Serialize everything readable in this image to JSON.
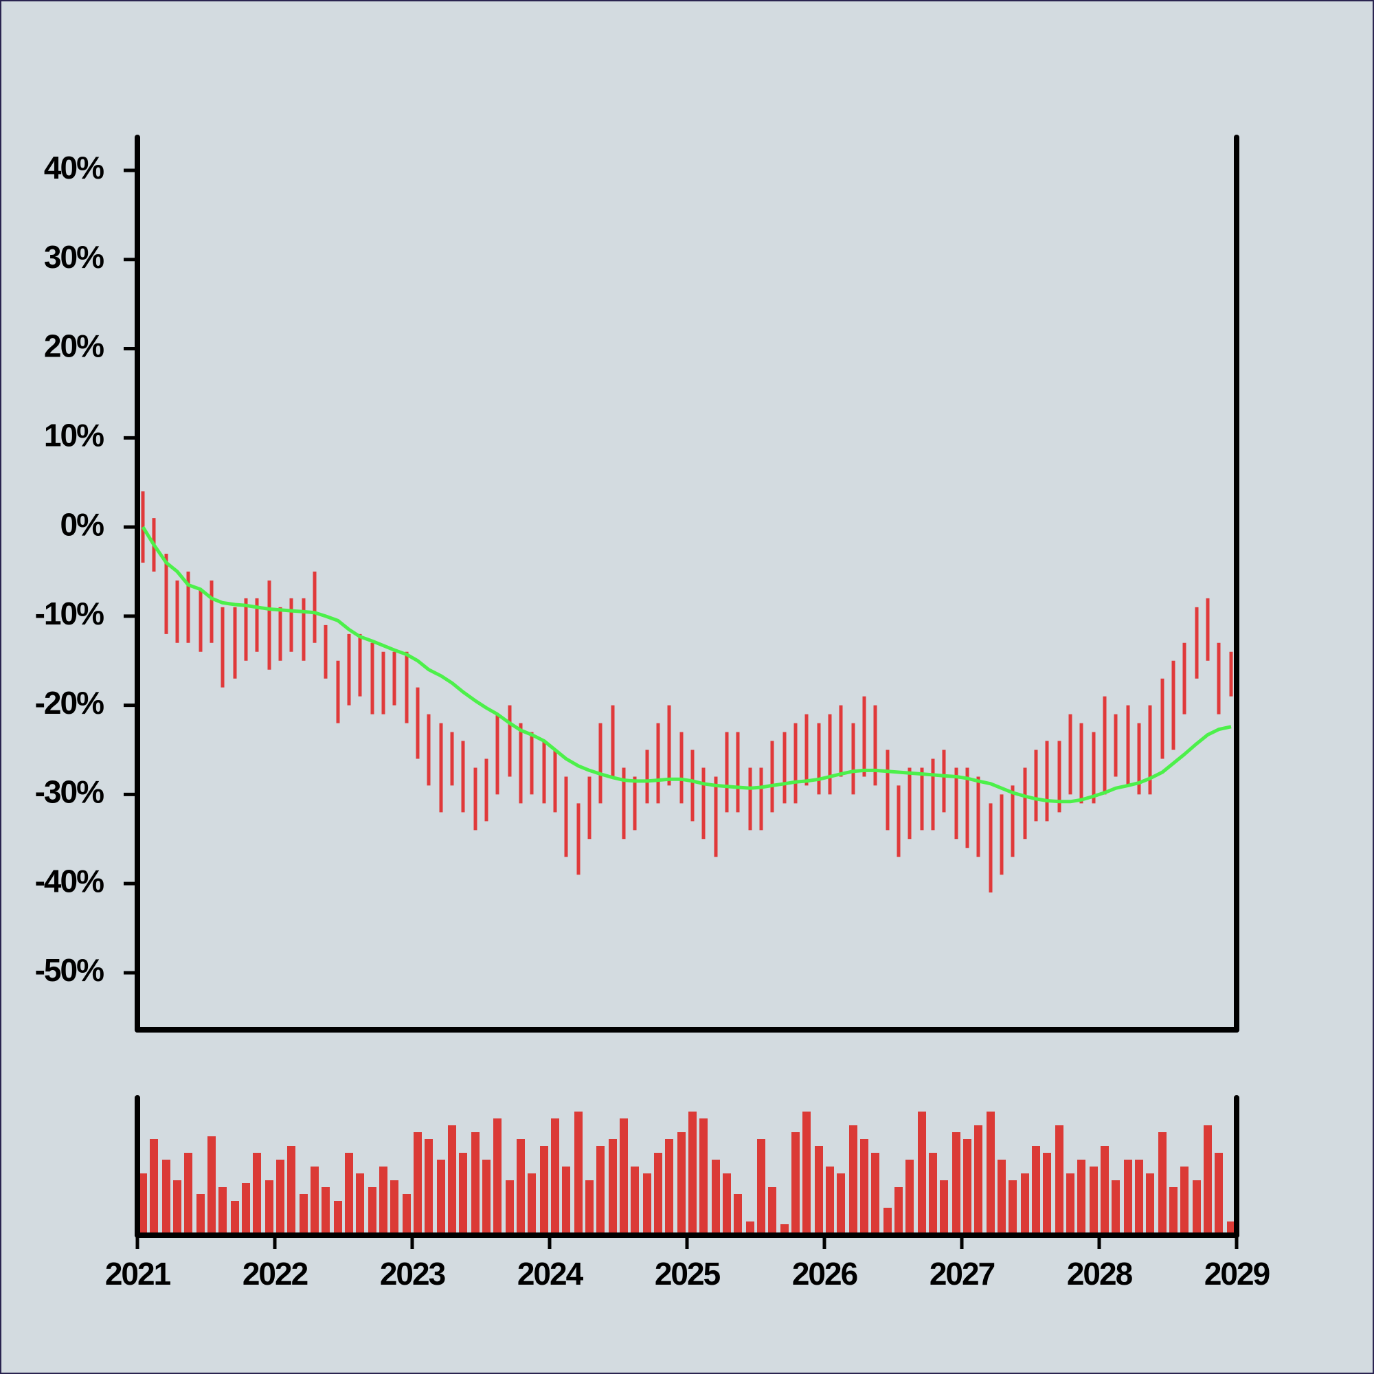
{
  "chart_data": {
    "type": "ohlc",
    "x": [
      2021.04,
      2021.12,
      2021.21,
      2021.29,
      2021.37,
      2021.46,
      2021.54,
      2021.62,
      2021.71,
      2021.79,
      2021.87,
      2021.96,
      2022.04,
      2022.12,
      2022.21,
      2022.29,
      2022.37,
      2022.46,
      2022.54,
      2022.62,
      2022.71,
      2022.79,
      2022.87,
      2022.96,
      2023.04,
      2023.12,
      2023.21,
      2023.29,
      2023.37,
      2023.46,
      2023.54,
      2023.62,
      2023.71,
      2023.79,
      2023.87,
      2023.96,
      2024.04,
      2024.12,
      2024.21,
      2024.29,
      2024.37,
      2024.46,
      2024.54,
      2024.62,
      2024.71,
      2024.79,
      2024.87,
      2024.96,
      2025.04,
      2025.12,
      2025.21,
      2025.29,
      2025.37,
      2025.46,
      2025.54,
      2025.62,
      2025.71,
      2025.79,
      2025.87,
      2025.96,
      2026.04,
      2026.12,
      2026.21,
      2026.29,
      2026.37,
      2026.46,
      2026.54,
      2026.62,
      2026.71,
      2026.79,
      2026.87,
      2026.96,
      2027.04,
      2027.12,
      2027.21,
      2027.29,
      2027.37,
      2027.46,
      2027.54,
      2027.62,
      2027.71,
      2027.79,
      2027.87,
      2027.96,
      2028.04,
      2028.12,
      2028.21,
      2028.29,
      2028.37,
      2028.46,
      2028.54,
      2028.62,
      2028.71,
      2028.79,
      2028.87,
      2028.96
    ],
    "high": [
      4,
      1,
      -3,
      -6,
      -5,
      -7,
      -6,
      -9,
      -9,
      -8,
      -8,
      -6,
      -9,
      -8,
      -8,
      -5,
      -11,
      -15,
      -12,
      -12,
      -13,
      -14,
      -14,
      -14,
      -18,
      -21,
      -22,
      -23,
      -24,
      -27,
      -26,
      -21,
      -20,
      -22,
      -23,
      -24,
      -25,
      -28,
      -31,
      -28,
      -22,
      -20,
      -27,
      -28,
      -25,
      -22,
      -20,
      -23,
      -25,
      -27,
      -28,
      -23,
      -23,
      -27,
      -27,
      -24,
      -23,
      -22,
      -21,
      -22,
      -21,
      -20,
      -22,
      -19,
      -20,
      -25,
      -29,
      -27,
      -27,
      -26,
      -25,
      -27,
      -27,
      -28,
      -31,
      -30,
      -29,
      -27,
      -25,
      -24,
      -24,
      -21,
      -22,
      -23,
      -19,
      -21,
      -20,
      -22,
      -20,
      -17,
      -15,
      -13,
      -9,
      -8,
      -13,
      -14
    ],
    "low": [
      -4,
      -5,
      -12,
      -13,
      -13,
      -14,
      -13,
      -18,
      -17,
      -15,
      -14,
      -16,
      -15,
      -14,
      -15,
      -13,
      -17,
      -22,
      -20,
      -19,
      -21,
      -21,
      -20,
      -22,
      -26,
      -29,
      -32,
      -29,
      -32,
      -34,
      -33,
      -30,
      -28,
      -31,
      -30,
      -31,
      -32,
      -37,
      -39,
      -35,
      -31,
      -28,
      -35,
      -34,
      -31,
      -31,
      -29,
      -31,
      -33,
      -35,
      -37,
      -32,
      -32,
      -34,
      -34,
      -32,
      -31,
      -31,
      -29,
      -30,
      -30,
      -28,
      -30,
      -28,
      -29,
      -34,
      -37,
      -35,
      -34,
      -34,
      -32,
      -35,
      -36,
      -37,
      -41,
      -39,
      -37,
      -35,
      -33,
      -33,
      -32,
      -30,
      -31,
      -31,
      -30,
      -28,
      -29,
      -30,
      -30,
      -26,
      -25,
      -21,
      -17,
      -15,
      -21,
      -19
    ],
    "ma": [
      0,
      -2,
      -4,
      -5,
      -6.5,
      -7,
      -8,
      -8.5,
      -8.7,
      -8.8,
      -9,
      -9.2,
      -9.3,
      -9.4,
      -9.5,
      -9.6,
      -10,
      -10.5,
      -11.5,
      -12.3,
      -12.8,
      -13.3,
      -13.8,
      -14.3,
      -15,
      -16,
      -16.7,
      -17.5,
      -18.5,
      -19.5,
      -20.3,
      -21,
      -22,
      -22.8,
      -23.3,
      -24,
      -25,
      -26,
      -26.8,
      -27.3,
      -27.7,
      -28.1,
      -28.4,
      -28.5,
      -28.5,
      -28.4,
      -28.3,
      -28.3,
      -28.5,
      -28.8,
      -29,
      -29.1,
      -29.2,
      -29.3,
      -29.2,
      -29,
      -28.8,
      -28.6,
      -28.5,
      -28.3,
      -28,
      -27.7,
      -27.4,
      -27.3,
      -27.3,
      -27.4,
      -27.5,
      -27.6,
      -27.7,
      -27.8,
      -27.9,
      -28,
      -28.2,
      -28.5,
      -28.8,
      -29.3,
      -29.8,
      -30.2,
      -30.5,
      -30.7,
      -30.8,
      -30.8,
      -30.6,
      -30.2,
      -29.8,
      -29.3,
      -29,
      -28.7,
      -28.2,
      -27.5,
      -26.5,
      -25.5,
      -24.3,
      -23.3,
      -22.7,
      -22.4
    ],
    "volume": [
      45,
      70,
      55,
      40,
      60,
      30,
      72,
      35,
      25,
      38,
      60,
      40,
      55,
      65,
      30,
      50,
      35,
      25,
      60,
      45,
      35,
      50,
      40,
      30,
      75,
      70,
      55,
      80,
      60,
      75,
      55,
      85,
      40,
      70,
      45,
      65,
      85,
      50,
      90,
      40,
      65,
      70,
      85,
      50,
      45,
      60,
      70,
      75,
      90,
      85,
      55,
      45,
      30,
      10,
      70,
      35,
      8,
      75,
      90,
      65,
      50,
      45,
      80,
      70,
      60,
      20,
      35,
      55,
      90,
      60,
      40,
      75,
      70,
      80,
      90,
      55,
      40,
      45,
      65,
      60,
      80,
      45,
      55,
      50,
      65,
      40,
      55,
      55,
      45,
      75,
      35,
      50,
      40,
      80,
      60,
      10
    ],
    "color": "#e0393a",
    "ma_color": "#4cf04a",
    "volume_color": "#db3a36",
    "xlim": [
      2021,
      2029
    ],
    "xticks": [
      2021,
      2022,
      2023,
      2024,
      2025,
      2026,
      2027,
      2028,
      2029
    ],
    "ylim": [
      -56.4,
      43.7
    ],
    "yticks": [
      {
        "value": 40,
        "label": "40%"
      },
      {
        "value": 30,
        "label": "30%"
      },
      {
        "value": 20,
        "label": "20%"
      },
      {
        "value": 10,
        "label": "10%"
      },
      {
        "value": 0,
        "label": "0%"
      },
      {
        "value": -10,
        "label": "-10%"
      },
      {
        "value": -20,
        "label": "-20%"
      },
      {
        "value": -30,
        "label": "-30%"
      },
      {
        "value": -40,
        "label": "-40%"
      },
      {
        "value": -50,
        "label": "-50%"
      }
    ],
    "volume_ylim": [
      0,
      100
    ]
  }
}
